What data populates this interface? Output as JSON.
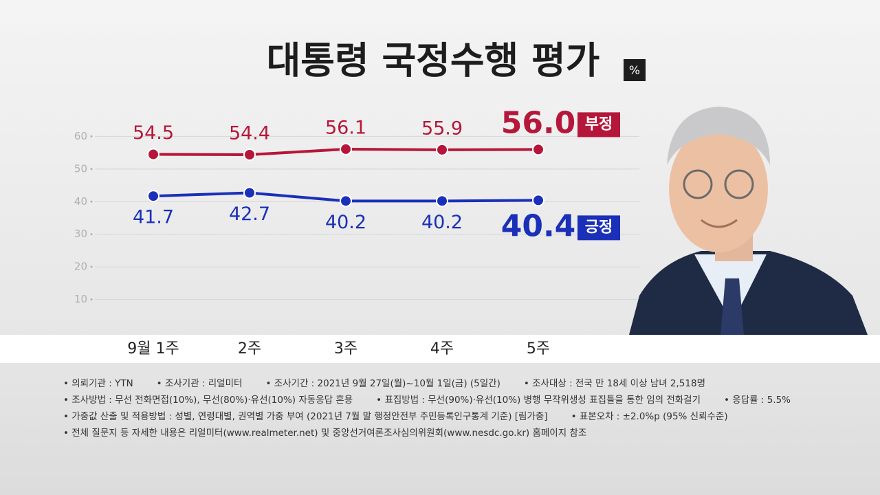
{
  "chart_data": {
    "type": "line",
    "title": "대통령 국정수행 평가",
    "unit": "%",
    "categories": [
      "9월 1주",
      "2주",
      "3주",
      "4주",
      "5주"
    ],
    "series": [
      {
        "name": "부정",
        "color": "#b5173a",
        "values": [
          54.5,
          54.4,
          56.1,
          55.9,
          56.0
        ],
        "value_labels": [
          "54.5",
          "54.4",
          "56.1",
          "55.9",
          "56.0"
        ]
      },
      {
        "name": "긍정",
        "color": "#1a30b8",
        "values": [
          41.7,
          42.7,
          40.2,
          40.2,
          40.4
        ],
        "value_labels": [
          "41.7",
          "42.7",
          "40.2",
          "40.2",
          "40.4"
        ]
      }
    ],
    "ylim": [
      0,
      70
    ],
    "yticks": [
      10,
      20,
      30,
      40,
      50,
      60
    ],
    "grid": true
  },
  "notes": [
    [
      "의뢰기관 : YTN",
      "조사기관 : 리얼미터",
      "조사기간 : 2021년 9월 27일(월)~10월 1일(금) (5일간)",
      "조사대상 : 전국 만 18세 이상 남녀 2,518명"
    ],
    [
      "조사방법 : 무선 전화면접(10%), 무선(80%)·유선(10%) 자동응답 혼용",
      "표집방법 : 무선(90%)·유선(10%) 병행 무작위생성 표집틀을 통한 임의 전화걸기",
      "응답률 : 5.5%"
    ],
    [
      "가중값 산출 및 적용방법 : 성별, 연령대별, 권역별 가중 부여 (2021년 7월 말 행정안전부 주민등록인구통계 기준) [림가중]",
      "표본오차 : ±2.0%p (95% 신뢰수준)"
    ],
    [
      "전체 질문지 등 자세한 내용은 리얼미터(www.realmeter.net) 및 중앙선거여론조사심의위원회(www.nesdc.go.kr) 홈페이지 참조"
    ]
  ]
}
